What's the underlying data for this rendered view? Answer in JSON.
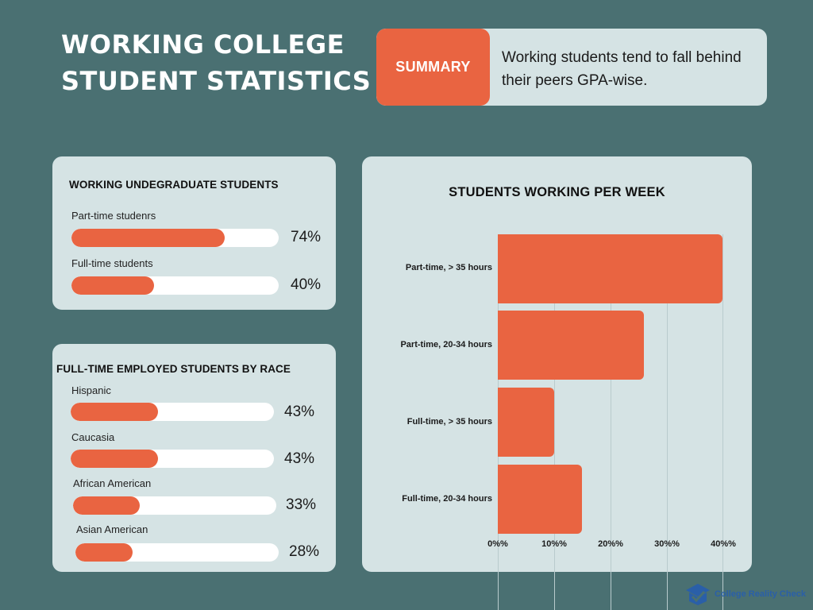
{
  "header": {
    "title_line1": "WORKING COLLEGE",
    "title_line2": "STUDENT STATISTICS"
  },
  "summary": {
    "badge": "SUMMARY",
    "text": "Working students tend to fall behind their peers GPA-wise."
  },
  "colors": {
    "background": "#4a7072",
    "card": "#d5e3e4",
    "accent": "#e96441",
    "track": "#ffffff",
    "logo": "#2a5fa8"
  },
  "undergrad_card": {
    "title": "WORKING UNDEGRADUATE STUDENTS",
    "items": [
      {
        "label": "Part-time studenrs",
        "value": 74,
        "display": "74%"
      },
      {
        "label": "Full-time students",
        "value": 40,
        "display": "40%"
      }
    ]
  },
  "race_card": {
    "title": "FULL-TIME EMPLOYED STUDENTS BY RACE",
    "items": [
      {
        "label": "Hispanic",
        "value": 43,
        "display": "43%"
      },
      {
        "label": "Caucasia",
        "value": 43,
        "display": "43%"
      },
      {
        "label": "African American",
        "value": 33,
        "display": "33%"
      },
      {
        "label": "Asian American",
        "value": 28,
        "display": "28%"
      }
    ]
  },
  "weekly_chart": {
    "title": "STUDENTS WORKING PER WEEK",
    "ticks": [
      "0%%",
      "10%%",
      "20%%",
      "30%%",
      "40%%"
    ]
  },
  "footer": {
    "logo_text": "College Reality Check"
  },
  "chart_data": [
    {
      "type": "bar",
      "orientation": "horizontal",
      "title": "STUDENTS WORKING PER WEEK",
      "categories": [
        "Part-time, > 35 hours",
        "Part-time, 20-34 hours",
        "Full-time, > 35 hours",
        "Full-time, 20-34 hours"
      ],
      "values": [
        40,
        26,
        10,
        15
      ],
      "xlabel": "",
      "ylabel": "",
      "xlim": [
        0,
        40
      ],
      "tick_labels": [
        "0%%",
        "10%%",
        "20%%",
        "30%%",
        "40%%"
      ],
      "grid": true,
      "legend": "none"
    },
    {
      "type": "bar",
      "orientation": "horizontal",
      "title": "WORKING UNDEGRADUATE STUDENTS",
      "categories": [
        "Part-time studenrs",
        "Full-time students"
      ],
      "values": [
        74,
        40
      ],
      "xlim": [
        0,
        100
      ]
    },
    {
      "type": "bar",
      "orientation": "horizontal",
      "title": "FULL-TIME EMPLOYED STUDENTS BY RACE",
      "categories": [
        "Hispanic",
        "Caucasia",
        "African American",
        "Asian American"
      ],
      "values": [
        43,
        43,
        33,
        28
      ],
      "xlim": [
        0,
        100
      ]
    }
  ]
}
